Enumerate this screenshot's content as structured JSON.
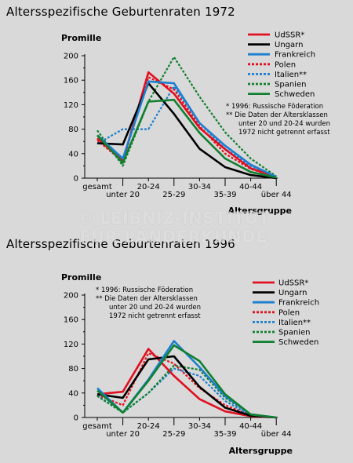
{
  "chart_data": [
    {
      "type": "line",
      "title": "Altersspezifische Geburtenraten 1972",
      "ylabel": "Promille",
      "xlabel": "Altersgruppe",
      "ylim": [
        0,
        200
      ],
      "yticks": [
        "0",
        "20",
        "40",
        "60",
        "80",
        "100",
        "120",
        "140",
        "160",
        "180",
        "200"
      ],
      "categories": [
        "gesamt",
        "unter 20",
        "20-24",
        "25-29",
        "30-34",
        "35-39",
        "40-44",
        "über 44"
      ],
      "legend_position": "top-right",
      "notes": [
        "*   1996: Russische Föderation",
        "** Die Daten der Altersklassen",
        "unter 20 und 20-24 wurden",
        "1972 nicht getrennt erfasst"
      ],
      "series": [
        {
          "name": "UdSSR*",
          "color": "#e01020",
          "dash": "solid",
          "values": [
            65,
            28,
            173,
            138,
            82,
            47,
            16,
            2
          ]
        },
        {
          "name": "Ungarn",
          "color": "#000000",
          "dash": "solid",
          "values": [
            57,
            55,
            155,
            105,
            48,
            18,
            5,
            0
          ]
        },
        {
          "name": "Frankreich",
          "color": "#1c7fd0",
          "dash": "solid",
          "values": [
            70,
            32,
            158,
            155,
            90,
            53,
            22,
            2
          ]
        },
        {
          "name": "Polen",
          "color": "#e01020",
          "dash": "dotted",
          "values": [
            62,
            27,
            165,
            145,
            85,
            40,
            15,
            2
          ]
        },
        {
          "name": "Italien**",
          "color": "#1c7fd0",
          "dash": "dotted",
          "values": [
            56,
            80,
            80,
            150,
            90,
            48,
            20,
            2
          ]
        },
        {
          "name": "Spanien",
          "color": "#108030",
          "dash": "dotted",
          "values": [
            78,
            20,
            125,
            198,
            133,
            75,
            32,
            3
          ]
        },
        {
          "name": "Schweden",
          "color": "#108030",
          "dash": "solid",
          "values": [
            70,
            25,
            125,
            128,
            74,
            32,
            10,
            1
          ]
        }
      ]
    },
    {
      "type": "line",
      "title": "Altersspezifische Geburtenraten 1996",
      "ylabel": "Promille",
      "xlabel": "Altersgruppe",
      "ylim": [
        0,
        200
      ],
      "yticks": [
        "0",
        "20",
        "40",
        "60",
        "80",
        "100",
        "120",
        "140",
        "160",
        "180",
        "200"
      ],
      "categories": [
        "gesamt",
        "unter 20",
        "20-24",
        "25-29",
        "30-34",
        "35-39",
        "40-44",
        "über 44"
      ],
      "legend_position": "top-right",
      "notes": [
        "*   1996: Russische Föderation",
        "** Die Daten der Altersklassen",
        "unter 20 und 20-24 wurden",
        "1972 nicht getrennt erfasst"
      ],
      "series": [
        {
          "name": "UdSSR*",
          "color": "#e01020",
          "dash": "solid",
          "values": [
            38,
            42,
            112,
            68,
            30,
            10,
            2,
            0
          ]
        },
        {
          "name": "Ungarn",
          "color": "#000000",
          "dash": "solid",
          "values": [
            38,
            32,
            95,
            100,
            50,
            16,
            3,
            0
          ]
        },
        {
          "name": "Frankreich",
          "color": "#1c7fd0",
          "dash": "solid",
          "values": [
            48,
            8,
            62,
            125,
            82,
            35,
            5,
            0
          ]
        },
        {
          "name": "Polen",
          "color": "#e01020",
          "dash": "dotted",
          "values": [
            37,
            20,
            105,
            88,
            48,
            20,
            4,
            0
          ]
        },
        {
          "name": "Italien**",
          "color": "#1c7fd0",
          "dash": "dotted",
          "values": [
            36,
            8,
            40,
            80,
            68,
            27,
            3,
            0
          ]
        },
        {
          "name": "Spanien",
          "color": "#108030",
          "dash": "dotted",
          "values": [
            35,
            8,
            40,
            85,
            78,
            32,
            5,
            0
          ]
        },
        {
          "name": "Schweden",
          "color": "#108030",
          "dash": "solid",
          "values": [
            44,
            8,
            60,
            118,
            92,
            38,
            5,
            0
          ]
        }
      ]
    }
  ],
  "watermark": [
    "© LEIBNIZ-INSTITUT",
    "FÜR LÄNDERKUNDE"
  ]
}
